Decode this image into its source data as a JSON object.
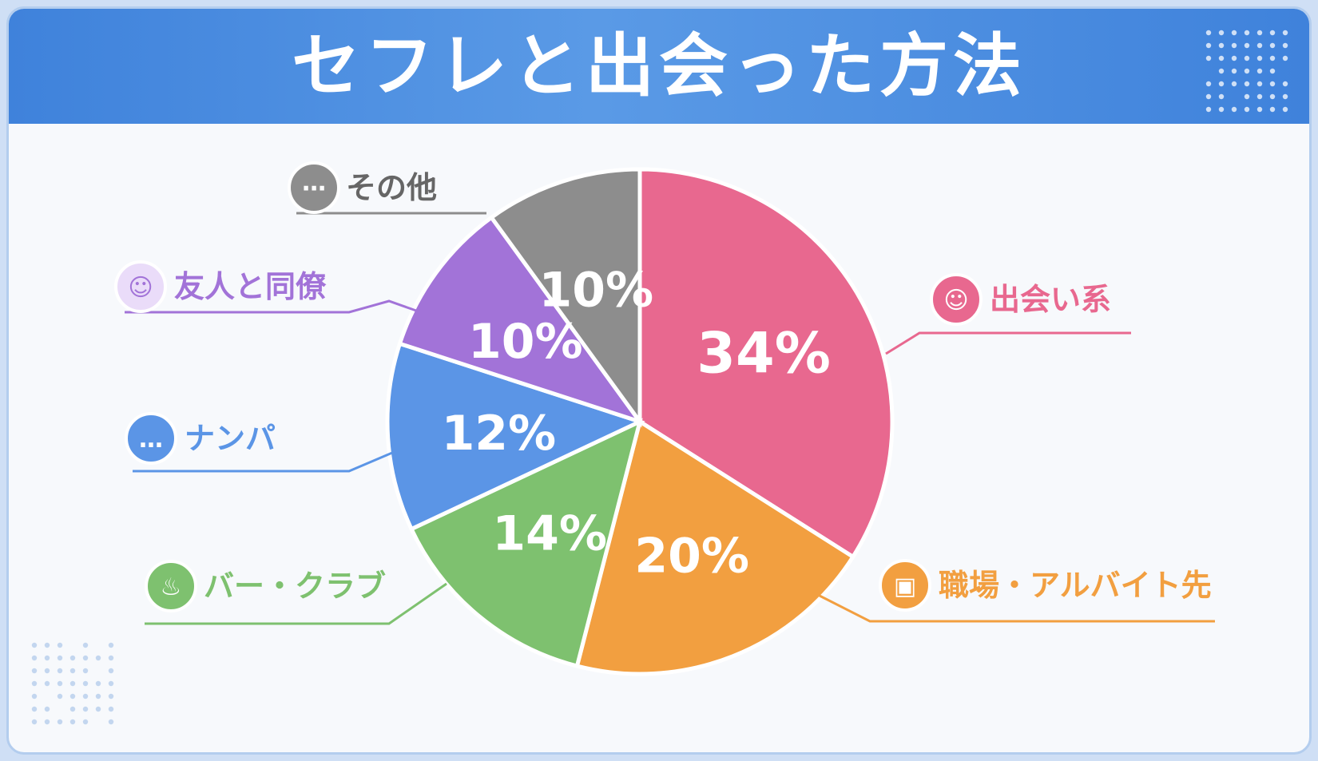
{
  "title": "セフレと出会った方法",
  "chart_data": {
    "type": "pie",
    "slices": [
      {
        "label": "出会い系",
        "value": 34,
        "display": "34%",
        "color": "#e8688f",
        "icon": "people-icon"
      },
      {
        "label": "職場・アルバイト先",
        "value": 20,
        "display": "20%",
        "color": "#f29f40",
        "icon": "briefcase-icon"
      },
      {
        "label": "バー・クラブ",
        "value": 14,
        "display": "14%",
        "color": "#7ec16f",
        "icon": "beer-mug-icon"
      },
      {
        "label": "ナンパ",
        "value": 12,
        "display": "12%",
        "color": "#5b95e6",
        "icon": "chat-bubble-icon"
      },
      {
        "label": "友人と同僚",
        "value": 10,
        "display": "10%",
        "color": "#a273d8",
        "icon": "friends-icon"
      },
      {
        "label": "その他",
        "value": 10,
        "display": "10%",
        "color": "#8d8d8d",
        "icon": "more-dots-icon"
      }
    ]
  }
}
